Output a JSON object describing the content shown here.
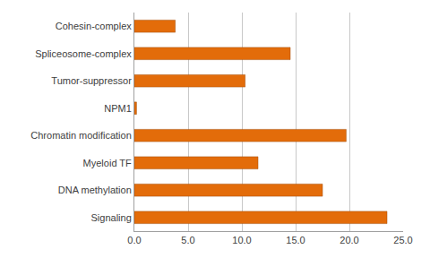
{
  "chart_data": {
    "type": "bar",
    "orientation": "horizontal",
    "categories": [
      "Signaling",
      "DNA methylation",
      "Myeloid TF",
      "Chromatin modification",
      "NPM1",
      "Tumor-suppressor",
      "Spliceosome-complex",
      "Cohesin-complex"
    ],
    "values": [
      23.5,
      17.5,
      11.5,
      19.7,
      0.2,
      10.3,
      14.5,
      3.8
    ],
    "color": "#e36c0a",
    "xlim": [
      0,
      25
    ],
    "xticks": [
      {
        "value": 0,
        "label": "0.0"
      },
      {
        "value": 5,
        "label": "5.0"
      },
      {
        "value": 10,
        "label": "10.0"
      },
      {
        "value": 15,
        "label": "15.0"
      },
      {
        "value": 20,
        "label": "20.0"
      },
      {
        "value": 25,
        "label": "25.0"
      }
    ],
    "grid": true
  }
}
